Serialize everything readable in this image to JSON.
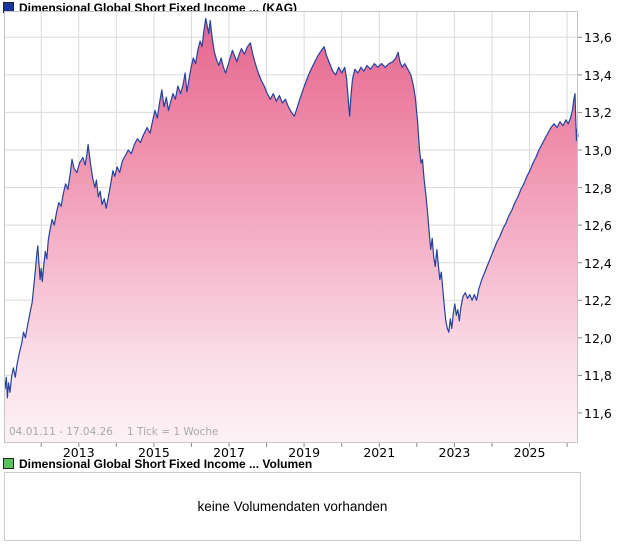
{
  "chart_data": {
    "type": "area",
    "title": "Dimensional Global Short Fixed Income ... (KAG)",
    "legend_marker_color": "#16369e",
    "line_color": "#24429e",
    "grid_color": "#dadada",
    "border_color": "#c5c5c5",
    "area_gradient": [
      "#e5648e",
      "#ee8cab",
      "#f5b5ca",
      "#fadde8",
      "#fdf2f6"
    ],
    "x_range": [
      2011.01,
      2026.29
    ],
    "ylim": [
      11.44,
      13.74
    ],
    "grid": true,
    "legend_position": "top-left",
    "footer": {
      "date_range": "04.01.11 - 17.04.26",
      "tick_info": "1 Tick = 1 Woche"
    },
    "y_ticks": [
      {
        "value": 11.6,
        "label": "11,6"
      },
      {
        "value": 11.8,
        "label": "11,8"
      },
      {
        "value": 12.0,
        "label": "12,0"
      },
      {
        "value": 12.2,
        "label": "12,2"
      },
      {
        "value": 12.4,
        "label": "12,4"
      },
      {
        "value": 12.6,
        "label": "12,6"
      },
      {
        "value": 12.8,
        "label": "12,8"
      },
      {
        "value": 13.0,
        "label": "13,0"
      },
      {
        "value": 13.2,
        "label": "13,2"
      },
      {
        "value": 13.4,
        "label": "13,4"
      },
      {
        "value": 13.6,
        "label": "13,6"
      }
    ],
    "x_ticks": [
      {
        "year": 2013,
        "label": "2013"
      },
      {
        "year": 2015,
        "label": "2015"
      },
      {
        "year": 2017,
        "label": "2017"
      },
      {
        "year": 2019,
        "label": "2019"
      },
      {
        "year": 2021,
        "label": "2021"
      },
      {
        "year": 2023,
        "label": "2023"
      },
      {
        "year": 2025,
        "label": "2025"
      }
    ],
    "grid_years": [
      2012,
      2013,
      2014,
      2015,
      2016,
      2017,
      2018,
      2019,
      2020,
      2021,
      2022,
      2023,
      2024,
      2025,
      2026
    ],
    "points": [
      [
        2011.01,
        11.8
      ],
      [
        2011.04,
        11.73
      ],
      [
        2011.07,
        11.79
      ],
      [
        2011.1,
        11.68
      ],
      [
        2011.13,
        11.76
      ],
      [
        2011.17,
        11.71
      ],
      [
        2011.21,
        11.79
      ],
      [
        2011.26,
        11.84
      ],
      [
        2011.31,
        11.79
      ],
      [
        2011.36,
        11.86
      ],
      [
        2011.42,
        11.92
      ],
      [
        2011.48,
        11.97
      ],
      [
        2011.53,
        12.03
      ],
      [
        2011.58,
        12.0
      ],
      [
        2011.64,
        12.07
      ],
      [
        2011.7,
        12.13
      ],
      [
        2011.76,
        12.19
      ],
      [
        2011.8,
        12.27
      ],
      [
        2011.84,
        12.35
      ],
      [
        2011.88,
        12.44
      ],
      [
        2011.91,
        12.49
      ],
      [
        2011.94,
        12.4
      ],
      [
        2011.97,
        12.31
      ],
      [
        2012.0,
        12.37
      ],
      [
        2012.03,
        12.3
      ],
      [
        2012.07,
        12.39
      ],
      [
        2012.11,
        12.46
      ],
      [
        2012.15,
        12.42
      ],
      [
        2012.19,
        12.52
      ],
      [
        2012.24,
        12.58
      ],
      [
        2012.29,
        12.63
      ],
      [
        2012.35,
        12.6
      ],
      [
        2012.41,
        12.67
      ],
      [
        2012.47,
        12.72
      ],
      [
        2012.53,
        12.7
      ],
      [
        2012.59,
        12.77
      ],
      [
        2012.65,
        12.82
      ],
      [
        2012.71,
        12.79
      ],
      [
        2012.77,
        12.87
      ],
      [
        2012.82,
        12.95
      ],
      [
        2012.88,
        12.9
      ],
      [
        2012.95,
        12.88
      ],
      [
        2013.02,
        12.93
      ],
      [
        2013.11,
        12.96
      ],
      [
        2013.17,
        12.92
      ],
      [
        2013.22,
        12.98
      ],
      [
        2013.25,
        13.03
      ],
      [
        2013.31,
        12.93
      ],
      [
        2013.37,
        12.85
      ],
      [
        2013.43,
        12.8
      ],
      [
        2013.47,
        12.84
      ],
      [
        2013.52,
        12.75
      ],
      [
        2013.57,
        12.78
      ],
      [
        2013.62,
        12.71
      ],
      [
        2013.68,
        12.74
      ],
      [
        2013.73,
        12.69
      ],
      [
        2013.79,
        12.75
      ],
      [
        2013.85,
        12.82
      ],
      [
        2013.91,
        12.89
      ],
      [
        2013.96,
        12.86
      ],
      [
        2014.02,
        12.91
      ],
      [
        2014.09,
        12.88
      ],
      [
        2014.16,
        12.94
      ],
      [
        2014.24,
        12.97
      ],
      [
        2014.32,
        13.0
      ],
      [
        2014.4,
        12.98
      ],
      [
        2014.48,
        13.03
      ],
      [
        2014.56,
        13.06
      ],
      [
        2014.64,
        13.04
      ],
      [
        2014.72,
        13.08
      ],
      [
        2014.82,
        13.12
      ],
      [
        2014.9,
        13.09
      ],
      [
        2014.97,
        13.16
      ],
      [
        2015.03,
        13.21
      ],
      [
        2015.09,
        13.17
      ],
      [
        2015.15,
        13.25
      ],
      [
        2015.21,
        13.32
      ],
      [
        2015.27,
        13.23
      ],
      [
        2015.33,
        13.28
      ],
      [
        2015.39,
        13.21
      ],
      [
        2015.45,
        13.26
      ],
      [
        2015.51,
        13.3
      ],
      [
        2015.57,
        13.27
      ],
      [
        2015.64,
        13.34
      ],
      [
        2015.71,
        13.3
      ],
      [
        2015.78,
        13.35
      ],
      [
        2015.83,
        13.41
      ],
      [
        2015.88,
        13.31
      ],
      [
        2015.93,
        13.37
      ],
      [
        2015.99,
        13.44
      ],
      [
        2016.05,
        13.49
      ],
      [
        2016.11,
        13.46
      ],
      [
        2016.17,
        13.53
      ],
      [
        2016.23,
        13.58
      ],
      [
        2016.28,
        13.55
      ],
      [
        2016.33,
        13.63
      ],
      [
        2016.38,
        13.7
      ],
      [
        2016.42,
        13.66
      ],
      [
        2016.46,
        13.62
      ],
      [
        2016.5,
        13.69
      ],
      [
        2016.55,
        13.6
      ],
      [
        2016.61,
        13.52
      ],
      [
        2016.67,
        13.48
      ],
      [
        2016.73,
        13.45
      ],
      [
        2016.79,
        13.49
      ],
      [
        2016.85,
        13.44
      ],
      [
        2016.91,
        13.41
      ],
      [
        2016.97,
        13.45
      ],
      [
        2017.03,
        13.49
      ],
      [
        2017.09,
        13.53
      ],
      [
        2017.15,
        13.5
      ],
      [
        2017.21,
        13.47
      ],
      [
        2017.27,
        13.51
      ],
      [
        2017.33,
        13.54
      ],
      [
        2017.41,
        13.51
      ],
      [
        2017.49,
        13.55
      ],
      [
        2017.57,
        13.57
      ],
      [
        2017.63,
        13.51
      ],
      [
        2017.7,
        13.46
      ],
      [
        2017.78,
        13.41
      ],
      [
        2017.86,
        13.37
      ],
      [
        2017.94,
        13.34
      ],
      [
        2018.02,
        13.3
      ],
      [
        2018.1,
        13.27
      ],
      [
        2018.18,
        13.3
      ],
      [
        2018.26,
        13.26
      ],
      [
        2018.34,
        13.29
      ],
      [
        2018.42,
        13.25
      ],
      [
        2018.5,
        13.27
      ],
      [
        2018.58,
        13.23
      ],
      [
        2018.66,
        13.2
      ],
      [
        2018.74,
        13.18
      ],
      [
        2018.82,
        13.23
      ],
      [
        2018.9,
        13.28
      ],
      [
        2018.97,
        13.32
      ],
      [
        2019.06,
        13.37
      ],
      [
        2019.16,
        13.42
      ],
      [
        2019.26,
        13.46
      ],
      [
        2019.36,
        13.5
      ],
      [
        2019.46,
        13.53
      ],
      [
        2019.53,
        13.55
      ],
      [
        2019.6,
        13.5
      ],
      [
        2019.68,
        13.46
      ],
      [
        2019.76,
        13.42
      ],
      [
        2019.84,
        13.4
      ],
      [
        2019.92,
        13.44
      ],
      [
        2020.0,
        13.41
      ],
      [
        2020.08,
        13.44
      ],
      [
        2020.13,
        13.38
      ],
      [
        2020.17,
        13.28
      ],
      [
        2020.21,
        13.18
      ],
      [
        2020.25,
        13.3
      ],
      [
        2020.29,
        13.38
      ],
      [
        2020.35,
        13.43
      ],
      [
        2020.43,
        13.41
      ],
      [
        2020.51,
        13.44
      ],
      [
        2020.59,
        13.42
      ],
      [
        2020.67,
        13.45
      ],
      [
        2020.77,
        13.43
      ],
      [
        2020.87,
        13.46
      ],
      [
        2020.96,
        13.44
      ],
      [
        2021.06,
        13.46
      ],
      [
        2021.16,
        13.44
      ],
      [
        2021.26,
        13.46
      ],
      [
        2021.36,
        13.47
      ],
      [
        2021.44,
        13.49
      ],
      [
        2021.5,
        13.52
      ],
      [
        2021.55,
        13.47
      ],
      [
        2021.61,
        13.44
      ],
      [
        2021.68,
        13.46
      ],
      [
        2021.76,
        13.43
      ],
      [
        2021.84,
        13.4
      ],
      [
        2021.9,
        13.35
      ],
      [
        2021.96,
        13.28
      ],
      [
        2022.02,
        13.15
      ],
      [
        2022.07,
        13.0
      ],
      [
        2022.11,
        12.93
      ],
      [
        2022.15,
        12.95
      ],
      [
        2022.19,
        12.85
      ],
      [
        2022.24,
        12.76
      ],
      [
        2022.29,
        12.66
      ],
      [
        2022.33,
        12.56
      ],
      [
        2022.37,
        12.47
      ],
      [
        2022.41,
        12.53
      ],
      [
        2022.45,
        12.43
      ],
      [
        2022.49,
        12.38
      ],
      [
        2022.53,
        12.47
      ],
      [
        2022.57,
        12.39
      ],
      [
        2022.61,
        12.31
      ],
      [
        2022.65,
        12.35
      ],
      [
        2022.69,
        12.26
      ],
      [
        2022.73,
        12.17
      ],
      [
        2022.77,
        12.09
      ],
      [
        2022.81,
        12.05
      ],
      [
        2022.85,
        12.03
      ],
      [
        2022.89,
        12.1
      ],
      [
        2022.93,
        12.05
      ],
      [
        2022.97,
        12.13
      ],
      [
        2023.01,
        12.18
      ],
      [
        2023.05,
        12.12
      ],
      [
        2023.09,
        12.15
      ],
      [
        2023.13,
        12.09
      ],
      [
        2023.17,
        12.16
      ],
      [
        2023.23,
        12.22
      ],
      [
        2023.29,
        12.24
      ],
      [
        2023.35,
        12.21
      ],
      [
        2023.41,
        12.23
      ],
      [
        2023.47,
        12.2
      ],
      [
        2023.53,
        12.23
      ],
      [
        2023.59,
        12.2
      ],
      [
        2023.65,
        12.26
      ],
      [
        2023.73,
        12.31
      ],
      [
        2023.81,
        12.35
      ],
      [
        2023.89,
        12.39
      ],
      [
        2023.97,
        12.43
      ],
      [
        2024.05,
        12.47
      ],
      [
        2024.13,
        12.51
      ],
      [
        2024.21,
        12.54
      ],
      [
        2024.29,
        12.58
      ],
      [
        2024.37,
        12.61
      ],
      [
        2024.45,
        12.65
      ],
      [
        2024.53,
        12.68
      ],
      [
        2024.61,
        12.72
      ],
      [
        2024.69,
        12.75
      ],
      [
        2024.77,
        12.79
      ],
      [
        2024.85,
        12.82
      ],
      [
        2024.93,
        12.86
      ],
      [
        2025.01,
        12.89
      ],
      [
        2025.09,
        12.93
      ],
      [
        2025.17,
        12.96
      ],
      [
        2025.25,
        13.0
      ],
      [
        2025.33,
        13.03
      ],
      [
        2025.41,
        13.06
      ],
      [
        2025.49,
        13.09
      ],
      [
        2025.57,
        13.12
      ],
      [
        2025.65,
        13.14
      ],
      [
        2025.73,
        13.12
      ],
      [
        2025.81,
        13.15
      ],
      [
        2025.89,
        13.13
      ],
      [
        2025.97,
        13.16
      ],
      [
        2026.03,
        13.14
      ],
      [
        2026.09,
        13.17
      ],
      [
        2026.14,
        13.21
      ],
      [
        2026.18,
        13.27
      ],
      [
        2026.21,
        13.3
      ],
      [
        2026.23,
        13.17
      ],
      [
        2026.25,
        13.05
      ],
      [
        2026.27,
        13.11
      ],
      [
        2026.29,
        13.07
      ]
    ]
  },
  "volume_chart": {
    "title": "Dimensional Global Short Fixed Income ... Volumen",
    "legend_marker_color": "#58c55c",
    "empty_message": "keine Volumendaten vorhanden"
  }
}
